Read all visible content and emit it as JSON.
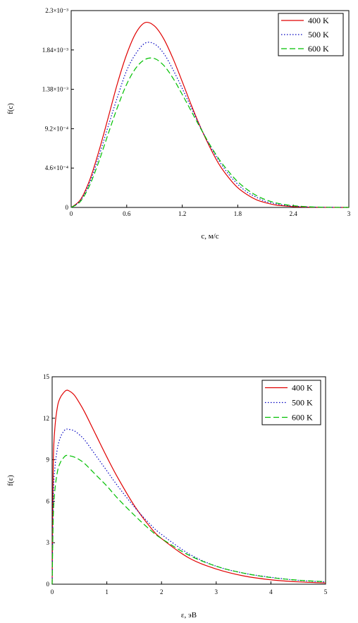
{
  "chart_data": [
    {
      "type": "line",
      "xlabel": "c, м/с",
      "ylabel": "f(c)",
      "xlim": [
        0,
        3
      ],
      "ylim": [
        0,
        0.0023
      ],
      "x_ticks": [
        "0",
        "0.6",
        "1.2",
        "1.8",
        "2.4",
        "3"
      ],
      "y_ticks": [
        "0",
        "4.6×10⁻⁴",
        "9.2×10⁻⁴",
        "1.38×10⁻³",
        "1.84×10⁻³",
        "2.3×10⁻³"
      ],
      "grid": false,
      "legend_position": "top-right",
      "series": [
        {
          "name": "400 K",
          "color": "#e00000",
          "dash": "solid",
          "x": [
            0,
            0.1,
            0.2,
            0.3,
            0.4,
            0.5,
            0.6,
            0.7,
            0.8,
            0.9,
            1.0,
            1.1,
            1.2,
            1.3,
            1.4,
            1.5,
            1.6,
            1.7,
            1.8,
            1.9,
            2.0,
            2.1,
            2.2,
            2.3,
            2.4,
            2.5,
            2.6,
            2.7,
            2.8,
            2.9,
            3.0
          ],
          "values": [
            0,
            9e-05,
            0.00032,
            0.00066,
            0.00105,
            0.00145,
            0.00179,
            0.00204,
            0.00216,
            0.00212,
            0.00197,
            0.00174,
            0.00147,
            0.00119,
            0.00093,
            0.0007,
            0.0005,
            0.00035,
            0.00023,
            0.00015,
            9e-05,
            5.5e-05,
            3e-05,
            1.8e-05,
            9e-06,
            5e-06,
            2.5e-06,
            1.2e-06,
            5e-07,
            2e-07,
            0
          ]
        },
        {
          "name": "500 K",
          "color": "#0000c0",
          "dash": "dotted",
          "x": [
            0,
            0.1,
            0.2,
            0.3,
            0.4,
            0.5,
            0.6,
            0.7,
            0.8,
            0.9,
            1.0,
            1.1,
            1.2,
            1.3,
            1.4,
            1.5,
            1.6,
            1.7,
            1.8,
            1.9,
            2.0,
            2.1,
            2.2,
            2.3,
            2.4,
            2.5,
            2.6,
            2.7,
            2.8,
            2.9,
            3.0
          ],
          "values": [
            0,
            8e-05,
            0.00029,
            0.0006,
            0.00095,
            0.00129,
            0.0016,
            0.0018,
            0.00192,
            0.00191,
            0.0018,
            0.00161,
            0.00139,
            0.00116,
            0.00093,
            0.00072,
            0.00054,
            0.00039,
            0.00027,
            0.00018,
            0.00012,
            7e-05,
            4.5e-05,
            2.6e-05,
            1.5e-05,
            8e-06,
            4e-06,
            2e-06,
            1e-06,
            4e-07,
            0
          ]
        },
        {
          "name": "600 K",
          "color": "#00c000",
          "dash": "dashed",
          "x": [
            0,
            0.1,
            0.2,
            0.3,
            0.4,
            0.5,
            0.6,
            0.7,
            0.8,
            0.9,
            1.0,
            1.1,
            1.2,
            1.3,
            1.4,
            1.5,
            1.6,
            1.7,
            1.8,
            1.9,
            2.0,
            2.1,
            2.2,
            2.3,
            2.4,
            2.5,
            2.6,
            2.7,
            2.8,
            2.9,
            3.0
          ],
          "values": [
            0,
            7e-05,
            0.00026,
            0.00054,
            0.00086,
            0.00117,
            0.00144,
            0.00163,
            0.00173,
            0.00174,
            0.00166,
            0.00151,
            0.00132,
            0.00112,
            0.00092,
            0.00073,
            0.00056,
            0.00042,
            0.0003,
            0.00021,
            0.00014,
            9e-05,
            5.7e-05,
            3.5e-05,
            2e-05,
            1.2e-05,
            6e-06,
            3e-06,
            1.5e-06,
            7e-07,
            0
          ]
        }
      ]
    },
    {
      "type": "line",
      "xlabel": "ε, эВ",
      "ylabel": "f(ε)",
      "xlim": [
        0,
        5
      ],
      "ylim": [
        0,
        15
      ],
      "x_ticks": [
        "0",
        "1",
        "2",
        "3",
        "4",
        "5"
      ],
      "y_ticks": [
        "0",
        "3",
        "6",
        "9",
        "12",
        "15"
      ],
      "grid": false,
      "legend_position": "top-right",
      "series": [
        {
          "name": "400 K",
          "color": "#e00000",
          "dash": "solid",
          "x": [
            0,
            0.02,
            0.05,
            0.1,
            0.15,
            0.2,
            0.25,
            0.3,
            0.4,
            0.5,
            0.6,
            0.8,
            1.0,
            1.2,
            1.5,
            1.8,
            2.0,
            2.5,
            3.0,
            3.5,
            4.0,
            4.5,
            5.0
          ],
          "values": [
            0,
            8.6,
            11.3,
            12.9,
            13.5,
            13.8,
            14.0,
            14.0,
            13.7,
            13.1,
            12.4,
            10.8,
            9.2,
            7.7,
            5.7,
            4.1,
            3.3,
            1.9,
            1.1,
            0.6,
            0.32,
            0.17,
            0.09
          ]
        },
        {
          "name": "500 K",
          "color": "#0000c0",
          "dash": "dotted",
          "x": [
            0,
            0.02,
            0.05,
            0.1,
            0.15,
            0.2,
            0.25,
            0.3,
            0.4,
            0.5,
            0.6,
            0.8,
            1.0,
            1.2,
            1.5,
            1.8,
            2.0,
            2.5,
            3.0,
            3.5,
            4.0,
            4.5,
            5.0
          ],
          "values": [
            0,
            6.2,
            8.4,
            9.9,
            10.6,
            11.0,
            11.2,
            11.2,
            11.1,
            10.8,
            10.4,
            9.3,
            8.2,
            7.1,
            5.6,
            4.3,
            3.6,
            2.2,
            1.3,
            0.8,
            0.5,
            0.28,
            0.16
          ]
        },
        {
          "name": "600 K",
          "color": "#00c000",
          "dash": "dashed",
          "x": [
            0,
            0.02,
            0.05,
            0.1,
            0.15,
            0.2,
            0.25,
            0.3,
            0.4,
            0.5,
            0.6,
            0.8,
            1.0,
            1.2,
            1.5,
            1.8,
            2.0,
            2.5,
            3.0,
            3.5,
            4.0,
            4.5,
            5.0
          ],
          "values": [
            0,
            4.8,
            6.8,
            8.2,
            8.8,
            9.1,
            9.3,
            9.3,
            9.2,
            9.0,
            8.7,
            7.9,
            7.1,
            6.2,
            5.0,
            3.9,
            3.3,
            2.1,
            1.3,
            0.8,
            0.48,
            0.29,
            0.18
          ]
        }
      ]
    }
  ]
}
